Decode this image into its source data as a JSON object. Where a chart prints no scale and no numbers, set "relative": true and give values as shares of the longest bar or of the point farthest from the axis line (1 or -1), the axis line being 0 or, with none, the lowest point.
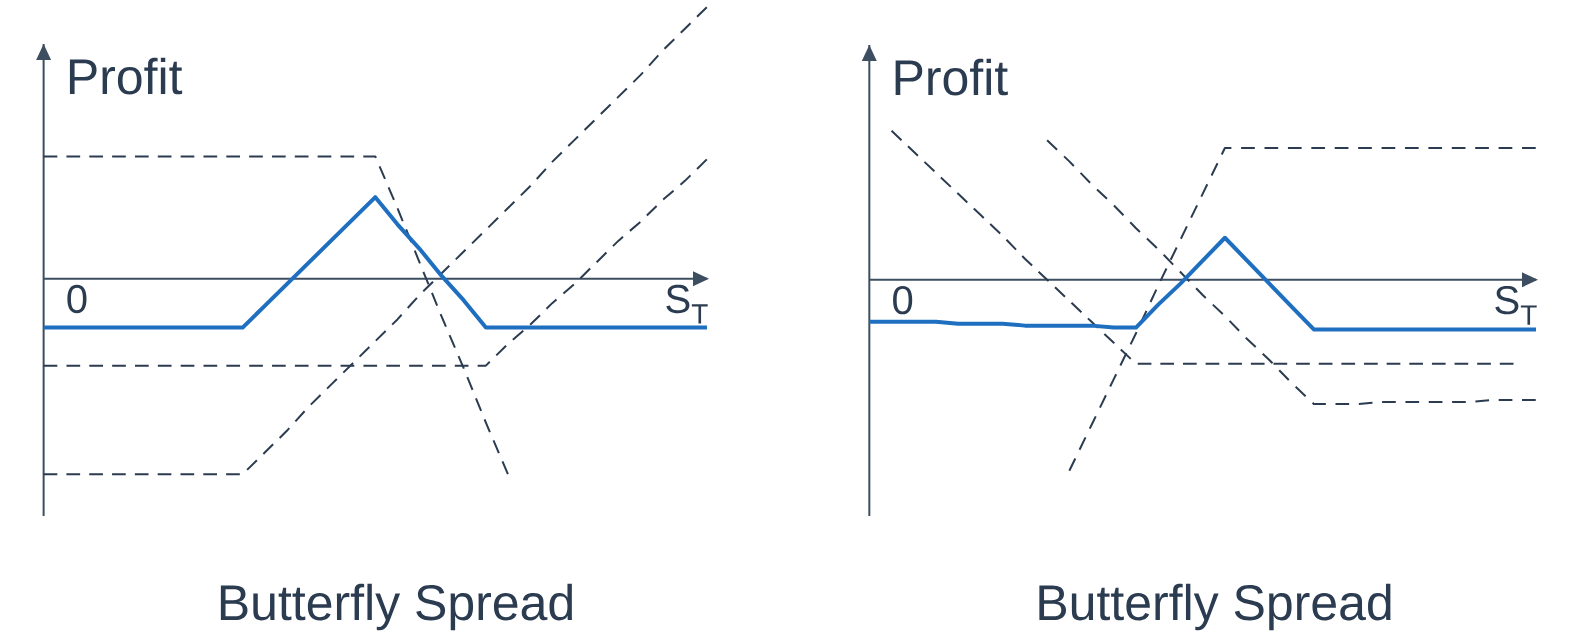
{
  "chart_data": [
    {
      "type": "line",
      "title": "Butterfly Spread",
      "xlabel": "S$_{T}$",
      "ylabel": "Profit",
      "annotations": [
        "0"
      ],
      "relative": true,
      "categories": [
        null,
        null,
        null,
        null,
        null,
        null,
        null,
        null,
        null,
        null,
        null,
        null,
        null,
        null,
        null,
        null,
        null,
        null,
        null,
        null,
        null,
        null,
        null,
        null,
        null,
        null,
        null,
        null,
        null,
        null,
        null
      ],
      "series": [
        {
          "color": "#2b3b50",
          "line_style": "dashed",
          "values": [
            0.45,
            0.45,
            0.45,
            0.45,
            0.45,
            0.45,
            0.45,
            0.45,
            0.45,
            0.45,
            0.45,
            0.45,
            0.45,
            0.45,
            0.45,
            0.45,
            0.26,
            0.06,
            -0.14,
            -0.33,
            -0.53,
            -0.72,
            null,
            null,
            null,
            null,
            null,
            null,
            null,
            null,
            null
          ]
        },
        {
          "color": "#2b3b50",
          "line_style": "dashed",
          "values": [
            -0.72,
            -0.72,
            -0.72,
            -0.72,
            -0.72,
            -0.72,
            -0.72,
            -0.72,
            -0.72,
            -0.72,
            -0.64,
            -0.56,
            -0.47,
            -0.39,
            -0.31,
            -0.23,
            -0.15,
            -0.06,
            0.02,
            0.1,
            0.18,
            0.26,
            0.34,
            0.43,
            0.51,
            0.59,
            0.67,
            0.75,
            0.84,
            0.92,
            1.0
          ]
        },
        {
          "color": "#2b3b50",
          "line_style": "dashed",
          "values": [
            -0.32,
            -0.32,
            -0.32,
            -0.32,
            -0.32,
            -0.32,
            -0.32,
            -0.32,
            -0.32,
            -0.32,
            -0.32,
            -0.32,
            -0.32,
            -0.32,
            -0.32,
            -0.32,
            -0.32,
            -0.32,
            -0.32,
            -0.32,
            -0.32,
            -0.24,
            -0.17,
            -0.09,
            -0.02,
            0.06,
            0.14,
            0.21,
            0.29,
            0.36,
            0.44
          ]
        },
        {
          "color": "#1f6fc0",
          "line_style": "solid",
          "values": [
            -0.18,
            -0.18,
            -0.18,
            -0.18,
            -0.18,
            -0.18,
            -0.18,
            -0.18,
            -0.18,
            -0.18,
            -0.1,
            -0.02,
            0.06,
            0.14,
            0.22,
            0.3,
            0.2,
            0.11,
            0.01,
            -0.08,
            -0.18,
            -0.18,
            -0.18,
            -0.18,
            -0.18,
            -0.18,
            -0.18,
            -0.18,
            -0.18,
            -0.18,
            -0.18
          ]
        }
      ]
    },
    {
      "type": "line",
      "title": "Butterfly Spread",
      "xlabel": "S$_{T}$",
      "ylabel": "Profit",
      "annotations": [
        "0"
      ],
      "relative": true,
      "categories": [
        null,
        null,
        null,
        null,
        null,
        null,
        null,
        null,
        null,
        null,
        null,
        null,
        null,
        null,
        null,
        null,
        null,
        null,
        null,
        null,
        null,
        null,
        null,
        null,
        null,
        null,
        null,
        null,
        null,
        null,
        null
      ],
      "series": [
        {
          "color": "#2b3b50",
          "line_style": "dashed",
          "values": [
            null,
            0.78,
            0.67,
            0.56,
            0.45,
            0.34,
            0.23,
            0.11,
            0.0,
            -0.11,
            -0.22,
            -0.33,
            -0.44,
            -0.44,
            -0.44,
            -0.44,
            -0.44,
            -0.44,
            -0.44,
            -0.44,
            -0.44,
            -0.44,
            -0.44,
            -0.44,
            -0.44,
            -0.44,
            -0.44,
            -0.44,
            -0.44,
            -0.44,
            null
          ]
        },
        {
          "color": "#2b3b50",
          "line_style": "dashed",
          "values": [
            null,
            null,
            null,
            null,
            null,
            null,
            null,
            null,
            0.73,
            0.62,
            0.5,
            0.39,
            0.27,
            0.16,
            0.04,
            -0.08,
            -0.19,
            -0.31,
            -0.42,
            -0.54,
            -0.65,
            -0.65,
            -0.65,
            -0.64,
            -0.64,
            -0.64,
            -0.64,
            -0.64,
            -0.63,
            -0.63,
            -0.63
          ]
        },
        {
          "color": "#2b3b50",
          "line_style": "dashed",
          "values": [
            null,
            null,
            null,
            null,
            null,
            null,
            null,
            null,
            null,
            -1.0,
            -0.76,
            -0.52,
            -0.28,
            -0.03,
            0.21,
            0.45,
            0.69,
            0.69,
            0.69,
            0.69,
            0.69,
            0.69,
            0.69,
            0.69,
            0.69,
            0.69,
            0.69,
            0.69,
            0.69,
            0.69,
            0.69
          ]
        },
        {
          "color": "#1f6fc0",
          "line_style": "solid",
          "values": [
            -0.22,
            -0.22,
            -0.22,
            -0.22,
            -0.23,
            -0.23,
            -0.23,
            -0.24,
            -0.24,
            -0.24,
            -0.24,
            -0.25,
            -0.25,
            -0.13,
            -0.02,
            0.1,
            0.22,
            0.1,
            -0.02,
            -0.14,
            -0.26,
            -0.26,
            -0.26,
            -0.26,
            -0.26,
            -0.26,
            -0.26,
            -0.26,
            -0.26,
            -0.26,
            -0.26
          ]
        }
      ]
    }
  ]
}
